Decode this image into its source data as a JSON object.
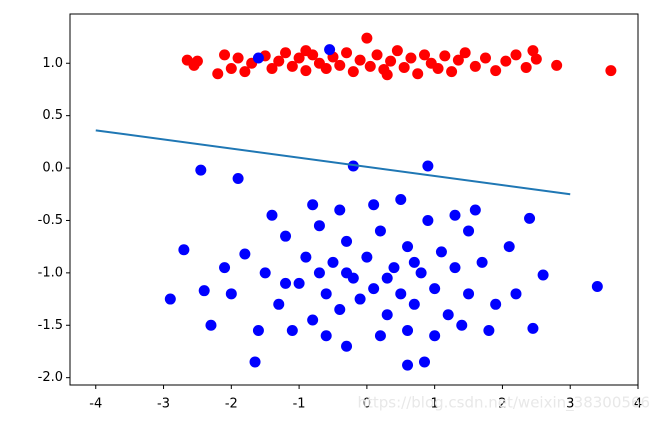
{
  "chart_data": {
    "type": "scatter",
    "watermark": "https://blog.csdn.net/weixin_38300566",
    "xlim": [
      -4.38,
      4.0
    ],
    "ylim": [
      -2.07,
      1.47
    ],
    "xticks": [
      -4,
      -3,
      -2,
      -1,
      0,
      1,
      2,
      3,
      4
    ],
    "yticks": [
      {
        "value": -2.0,
        "label": "-2.0"
      },
      {
        "value": -1.5,
        "label": "-1.5"
      },
      {
        "value": -1.0,
        "label": "-1.0"
      },
      {
        "value": -0.5,
        "label": "-0.5"
      },
      {
        "value": 0.0,
        "label": "0.0"
      },
      {
        "value": 0.5,
        "label": "0.5"
      },
      {
        "value": 1.0,
        "label": "1.0"
      }
    ],
    "series": [
      {
        "color": "#ff0000",
        "x": [
          -2.65,
          -2.55,
          -2.5,
          -2.2,
          -2.1,
          -2.0,
          -1.9,
          -1.8,
          -1.7,
          -1.5,
          -1.4,
          -1.3,
          -1.2,
          -1.1,
          -1.0,
          -0.9,
          -0.8,
          -0.7,
          -0.6,
          -0.5,
          -0.4,
          -0.3,
          -0.2,
          -0.1,
          0.0,
          0.05,
          0.15,
          0.25,
          0.35,
          0.45,
          0.55,
          0.65,
          0.75,
          0.85,
          0.95,
          1.05,
          1.15,
          1.25,
          1.35,
          1.45,
          1.6,
          1.75,
          1.9,
          2.05,
          2.2,
          2.35,
          2.5,
          2.45,
          2.8,
          3.6,
          0.3,
          -0.9
        ],
        "y": [
          1.03,
          0.98,
          1.02,
          0.9,
          1.08,
          0.95,
          1.05,
          0.92,
          1.0,
          1.07,
          0.95,
          1.02,
          1.1,
          0.97,
          1.05,
          0.93,
          1.08,
          1.0,
          0.95,
          1.06,
          0.98,
          1.1,
          0.92,
          1.03,
          1.24,
          0.97,
          1.08,
          0.94,
          1.02,
          1.12,
          0.96,
          1.05,
          0.9,
          1.08,
          1.0,
          0.95,
          1.07,
          0.92,
          1.03,
          1.1,
          0.97,
          1.05,
          0.93,
          1.02,
          1.08,
          0.96,
          1.04,
          1.12,
          0.98,
          0.93,
          0.89,
          1.12
        ]
      },
      {
        "color": "#0000ff",
        "x": [
          -1.6,
          -0.55,
          0.9,
          -0.2,
          -2.45,
          -1.9,
          -2.9,
          -2.7,
          3.4,
          2.4,
          2.45,
          -1.65,
          0.6,
          0.85,
          -0.3,
          2.6,
          -2.4,
          -2.1,
          1.6,
          -1.8,
          -1.5,
          -1.3,
          -1.2,
          -1.0,
          -0.9,
          -0.8,
          -0.7,
          -0.6,
          -0.5,
          -0.4,
          -0.3,
          -0.2,
          -0.1,
          0.0,
          0.1,
          0.2,
          0.3,
          0.4,
          0.5,
          0.6,
          0.7,
          0.8,
          0.9,
          1.0,
          1.1,
          1.2,
          1.3,
          1.5,
          1.7,
          1.9,
          2.1,
          2.2,
          -2.0,
          -1.6,
          -1.1,
          -0.6,
          0.2,
          0.6,
          1.0,
          1.4,
          -0.8,
          0.1,
          0.5,
          -0.4,
          -1.4,
          1.3,
          -2.3,
          1.8,
          -0.3,
          0.3,
          -0.7,
          0.7,
          -1.2,
          1.5
        ],
        "y": [
          1.05,
          1.13,
          0.02,
          0.02,
          -0.02,
          -0.1,
          -1.25,
          -0.78,
          -1.13,
          -0.48,
          -1.53,
          -1.85,
          -1.88,
          -1.85,
          -1.7,
          -1.02,
          -1.17,
          -0.95,
          -0.4,
          -0.82,
          -1.0,
          -1.3,
          -0.65,
          -1.1,
          -0.85,
          -1.45,
          -0.55,
          -1.2,
          -0.9,
          -1.35,
          -0.7,
          -1.05,
          -1.25,
          -0.85,
          -1.15,
          -0.6,
          -1.4,
          -0.95,
          -1.2,
          -0.75,
          -1.3,
          -1.0,
          -0.5,
          -1.15,
          -0.8,
          -1.4,
          -0.95,
          -1.2,
          -0.9,
          -1.3,
          -0.75,
          -1.2,
          -1.2,
          -1.55,
          -1.55,
          -1.6,
          -1.6,
          -1.55,
          -1.6,
          -1.5,
          -0.35,
          -0.35,
          -0.3,
          -0.4,
          -0.45,
          -0.45,
          -1.5,
          -1.55,
          -1.0,
          -1.05,
          -1.0,
          -0.9,
          -1.1,
          -0.6
        ]
      }
    ],
    "line": {
      "color": "#1f77b4",
      "x": [
        -4,
        3
      ],
      "y": [
        0.36,
        -0.25
      ]
    }
  }
}
